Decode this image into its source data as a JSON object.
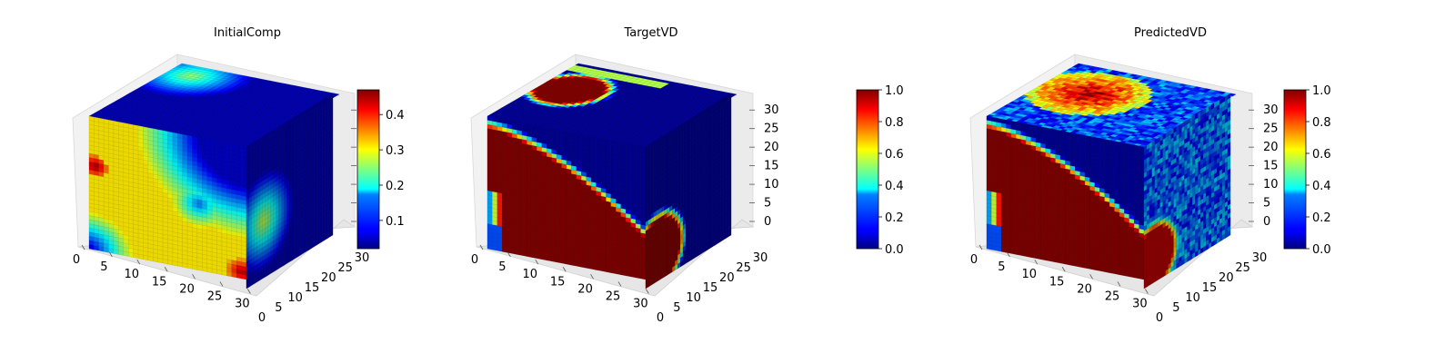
{
  "chart_data": [
    {
      "type": "heatmap",
      "title": "InitialComp",
      "colormap": "jet",
      "x_ticks": [
        "0",
        "5",
        "10",
        "15",
        "20",
        "25",
        "30"
      ],
      "y_ticks": [
        "0",
        "5",
        "10",
        "15",
        "20",
        "25",
        "30"
      ],
      "z_ticks": [
        "",
        "",
        "",
        "",
        "",
        "",
        ""
      ],
      "colorbar": {
        "range": [
          0.02,
          0.47
        ],
        "ticks": [
          "0.1",
          "0.2",
          "0.3",
          "0.4"
        ],
        "tick_values": [
          0.1,
          0.2,
          0.3,
          0.4
        ]
      },
      "grid_size": 32,
      "field_description_values": {
        "front_face_dominant": 0.3,
        "top_face_dominant": 0.05,
        "side_face_dominant": 0.05,
        "hotspots": [
          0.47,
          0.46
        ]
      }
    },
    {
      "type": "heatmap",
      "title": "TargetVD",
      "colormap": "jet",
      "x_ticks": [
        "0",
        "5",
        "10",
        "15",
        "20",
        "25",
        "30"
      ],
      "y_ticks": [
        "0",
        "5",
        "10",
        "15",
        "20",
        "25",
        "30"
      ],
      "z_ticks": [
        "0",
        "5",
        "10",
        "15",
        "20",
        "25",
        "30"
      ],
      "colorbar": {
        "range": [
          0.0,
          1.0
        ],
        "ticks": [
          "0.0",
          "0.2",
          "0.4",
          "0.6",
          "0.8",
          "1.0"
        ],
        "tick_values": [
          0.0,
          0.2,
          0.4,
          0.6,
          0.8,
          1.0
        ]
      },
      "grid_size": 32,
      "field_description_values": {
        "inside_region": 1.0,
        "outside_region": 0.0
      }
    },
    {
      "type": "heatmap",
      "title": "PredictedVD",
      "colormap": "jet",
      "x_ticks": [
        "0",
        "5",
        "10",
        "15",
        "20",
        "25",
        "30"
      ],
      "y_ticks": [
        "0",
        "5",
        "10",
        "15",
        "20",
        "25",
        "30"
      ],
      "z_ticks": [
        "0",
        "5",
        "10",
        "15",
        "20",
        "25",
        "30"
      ],
      "colorbar": {
        "range": [
          0.0,
          1.0
        ],
        "ticks": [
          "0.0",
          "0.2",
          "0.4",
          "0.6",
          "0.8",
          "1.0"
        ],
        "tick_values": [
          0.0,
          0.2,
          0.4,
          0.6,
          0.8,
          1.0
        ]
      },
      "grid_size": 32,
      "field_description_values": {
        "inside_region": 1.0,
        "outside_region": 0.05
      }
    }
  ]
}
